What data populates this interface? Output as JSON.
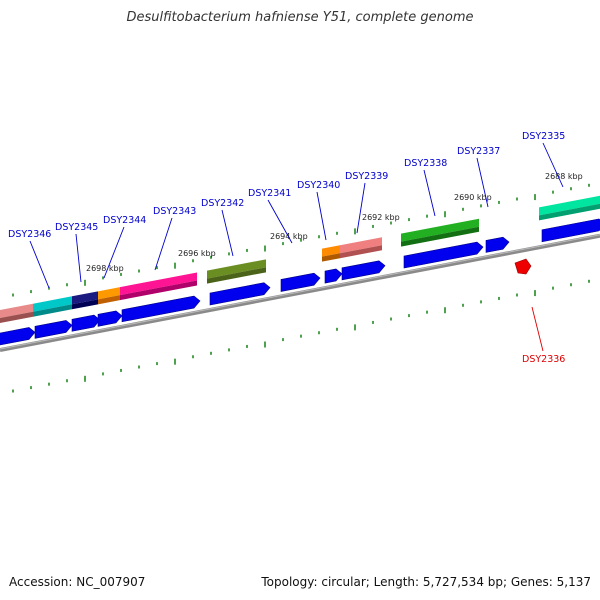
{
  "header": {
    "title": "Desulfitobacterium hafniense Y51, complete genome"
  },
  "footer": {
    "accession": "Accession: NC_007907",
    "topology": "Topology: circular; Length: 5,727,534 bp; Genes: 5,137"
  },
  "colors": {
    "forward_gene": "#0000ee",
    "reverse_gene": "#ee0000",
    "tick": "#228b22",
    "backbone": "#8a8a8a",
    "label_forward": "#0000cc",
    "label_reverse": "#dd0000"
  },
  "kbp_labels": [
    "2698 kbp",
    "2696 kbp",
    "2694 kbp",
    "2692 kbp",
    "2690 kbp",
    "2688 kbp"
  ],
  "gene_labels": [
    {
      "id": "DSY2346",
      "strand": "+"
    },
    {
      "id": "DSY2345",
      "strand": "+"
    },
    {
      "id": "DSY2344",
      "strand": "+"
    },
    {
      "id": "DSY2343",
      "strand": "+"
    },
    {
      "id": "DSY2342",
      "strand": "+"
    },
    {
      "id": "DSY2341",
      "strand": "+"
    },
    {
      "id": "DSY2340",
      "strand": "+"
    },
    {
      "id": "DSY2339",
      "strand": "+"
    },
    {
      "id": "DSY2338",
      "strand": "+"
    },
    {
      "id": "DSY2337",
      "strand": "+"
    },
    {
      "id": "DSY2335",
      "strand": "+"
    },
    {
      "id": "DSY2336",
      "strand": "-"
    }
  ]
}
